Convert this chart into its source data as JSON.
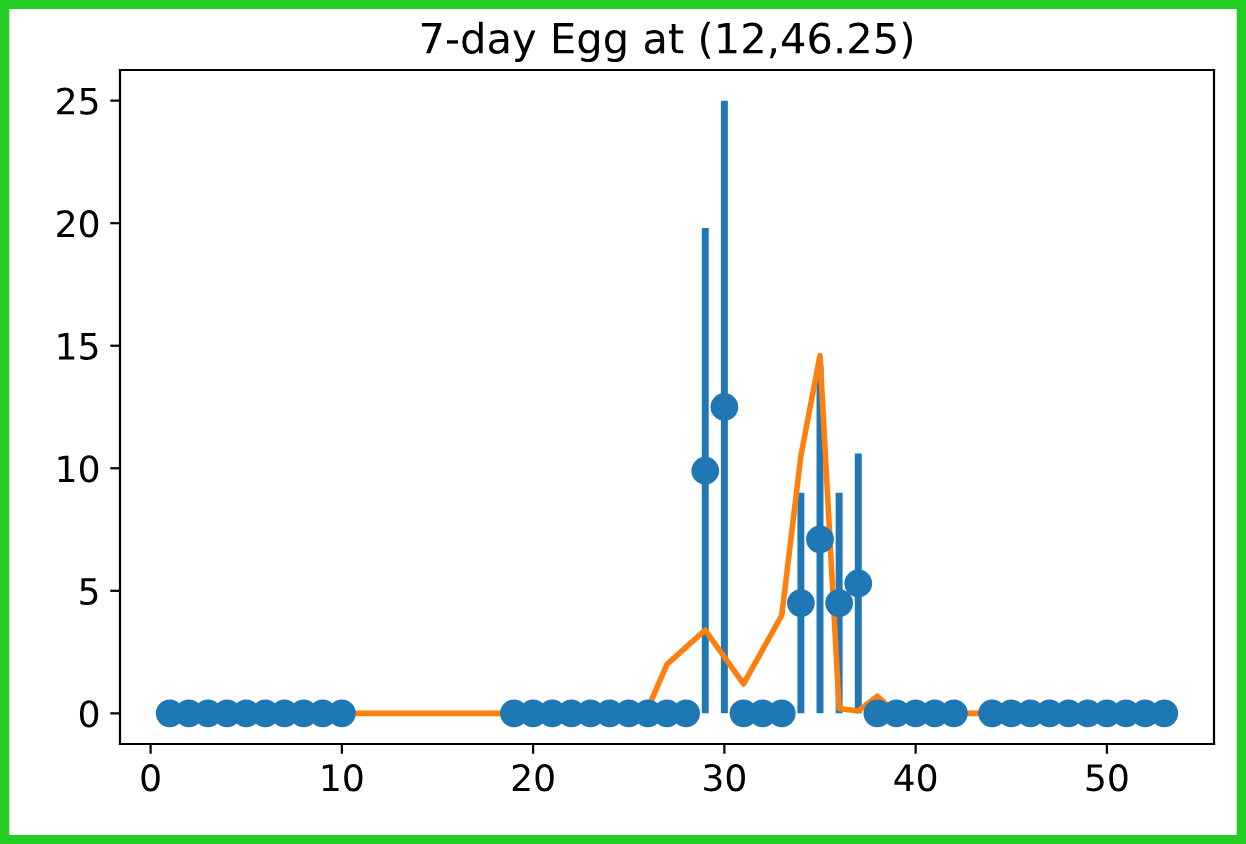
{
  "chart_data": {
    "type": "scatter",
    "title": "7-day Egg at (12,46.25)",
    "series": [
      {
        "color": "#1f77b4",
        "marker": "circle",
        "x": [
          1,
          2,
          3,
          4,
          5,
          6,
          7,
          8,
          9,
          10,
          19,
          20,
          21,
          22,
          23,
          24,
          25,
          26,
          27,
          28,
          29,
          30,
          31,
          32,
          33,
          34,
          35,
          36,
          37,
          38,
          39,
          40,
          41,
          42,
          44,
          45,
          46,
          47,
          48,
          49,
          50,
          51,
          52,
          53
        ],
        "values": [
          0,
          0,
          0,
          0,
          0,
          0,
          0,
          0,
          0,
          0,
          0,
          0,
          0,
          0,
          0,
          0,
          0,
          0,
          0,
          0,
          9.9,
          12.5,
          0,
          0,
          0,
          4.5,
          7.1,
          4.5,
          5.3,
          0,
          0,
          0,
          0,
          0,
          0,
          0,
          0,
          0,
          0,
          0,
          0,
          0,
          0,
          0
        ],
        "errors": [
          0,
          0,
          0,
          0,
          0,
          0,
          0,
          0,
          0,
          0,
          0,
          0,
          0,
          0,
          0,
          0,
          0,
          0,
          0,
          0,
          9.9,
          12.5,
          0,
          0,
          0,
          4.5,
          7.1,
          4.5,
          5.3,
          0,
          0,
          0,
          0,
          0,
          0,
          0,
          0,
          0,
          0,
          0,
          0,
          0,
          0,
          0
        ]
      },
      {
        "type": "line",
        "color": "#ff7f0e",
        "x": [
          1,
          10,
          19,
          25,
          26,
          27,
          28,
          29,
          30,
          31,
          32,
          33,
          34,
          35,
          36,
          37,
          38,
          39,
          53
        ],
        "values": [
          0,
          0,
          0,
          0,
          0.2,
          2.0,
          2.7,
          3.4,
          2.3,
          1.2,
          2.6,
          4.0,
          10.5,
          14.6,
          0.2,
          0.1,
          0.7,
          0,
          0
        ]
      }
    ],
    "xlim": [
      -1.6,
      55.6
    ],
    "ylim": [
      -1.25,
      26.25
    ],
    "xticks": [
      0,
      10,
      20,
      30,
      40,
      50
    ],
    "yticks": [
      0,
      5,
      10,
      15,
      20,
      25
    ],
    "grid": false,
    "legend": false
  }
}
